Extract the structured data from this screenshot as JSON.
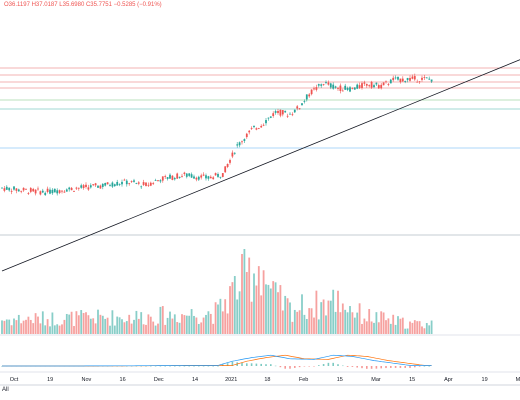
{
  "header": {
    "ohlc_readout": "O36.1197 H37.0187 L35.6980 C35.7751 −0.5285 (−0.91%)"
  },
  "footer": {
    "all_label": "All"
  },
  "colors": {
    "up": "#26a69a",
    "down": "#ef5350",
    "macd": "#2196f3",
    "signal": "#ff6d00",
    "trendline": "#131722"
  },
  "time_axis": {
    "labels": [
      "Oct",
      "19",
      "Nov",
      "16",
      "Dec",
      "14",
      "2021",
      "18",
      "Feb",
      "15",
      "Mar",
      "15",
      "Apr",
      "19",
      "May"
    ]
  },
  "chart_data": {
    "type": "candlestick",
    "bar_period_days": 1,
    "first_bar": "2020-09-21",
    "last_bar": "2021-03-19",
    "price_path": [
      [
        0,
        25.0
      ],
      [
        8,
        24.8
      ],
      [
        18,
        24.6
      ],
      [
        28,
        24.9
      ],
      [
        40,
        25.2
      ],
      [
        52,
        25.6
      ],
      [
        60,
        25.3
      ],
      [
        66,
        25.9
      ],
      [
        76,
        26.3
      ],
      [
        86,
        26.0
      ],
      [
        92,
        26.4
      ],
      [
        98,
        29.2
      ],
      [
        104,
        30.8
      ],
      [
        108,
        31.3
      ],
      [
        114,
        32.6
      ],
      [
        120,
        32.4
      ],
      [
        124,
        33.1
      ],
      [
        128,
        34.4
      ],
      [
        134,
        35.5
      ],
      [
        140,
        35.0
      ],
      [
        146,
        34.9
      ],
      [
        152,
        35.4
      ],
      [
        158,
        35.2
      ],
      [
        163,
        35.8
      ],
      [
        170,
        35.9
      ]
    ],
    "volume_level": [
      [
        0,
        0.2
      ],
      [
        30,
        0.22
      ],
      [
        60,
        0.24
      ],
      [
        90,
        0.3
      ],
      [
        95,
        0.55
      ],
      [
        100,
        0.75
      ],
      [
        108,
        0.98
      ],
      [
        112,
        0.55
      ],
      [
        120,
        0.35
      ],
      [
        135,
        0.42
      ],
      [
        140,
        0.48
      ],
      [
        150,
        0.26
      ],
      [
        170,
        0.14
      ]
    ],
    "macd_path": [
      [
        0,
        0
      ],
      [
        30,
        0
      ],
      [
        60,
        0.05
      ],
      [
        90,
        0.1
      ],
      [
        96,
        0.8
      ],
      [
        104,
        1.4
      ],
      [
        112,
        1.8
      ],
      [
        120,
        1.2
      ],
      [
        130,
        1.1
      ],
      [
        138,
        1.8
      ],
      [
        146,
        1.6
      ],
      [
        155,
        0.9
      ],
      [
        170,
        0.1
      ]
    ],
    "horizontal_levels": [
      37.0,
      36.3,
      35.6,
      35.0,
      33.8,
      32.9,
      29.0,
      20.3
    ],
    "trendline": [
      [
        0,
        16.7
      ],
      [
        240,
        40.2
      ]
    ]
  }
}
